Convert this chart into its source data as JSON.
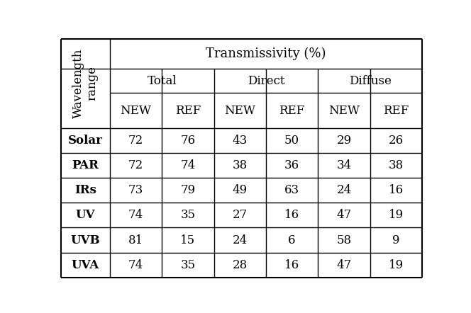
{
  "title": "Transmissivity (%)",
  "row_header_label": "Wavelength\nrange",
  "col_groups": [
    "Total",
    "Direct",
    "Diffuse"
  ],
  "col_subheaders": [
    "NEW",
    "REF",
    "NEW",
    "REF",
    "NEW",
    "REF"
  ],
  "row_labels": [
    "Solar",
    "PAR",
    "IRs",
    "UV",
    "UVB",
    "UVA"
  ],
  "table_data": [
    [
      72,
      76,
      43,
      50,
      29,
      26
    ],
    [
      72,
      74,
      38,
      36,
      34,
      38
    ],
    [
      73,
      79,
      49,
      63,
      24,
      16
    ],
    [
      74,
      35,
      27,
      16,
      47,
      19
    ],
    [
      81,
      15,
      24,
      6,
      58,
      9
    ],
    [
      74,
      35,
      28,
      16,
      47,
      19
    ]
  ],
  "bg_color": "#ffffff",
  "text_color": "#000000",
  "line_color": "#000000",
  "font_size": 12,
  "header_font_size": 13
}
